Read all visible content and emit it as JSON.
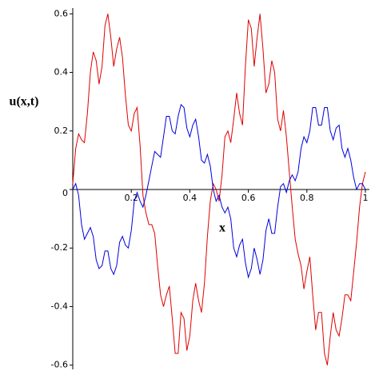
{
  "chart_data": {
    "type": "line",
    "xlabel": "x",
    "ylabel": "u(x,t)",
    "x": [
      0,
      0.01,
      0.02,
      0.03,
      0.04,
      0.05,
      0.06,
      0.07,
      0.08,
      0.09,
      0.1,
      0.11,
      0.12,
      0.13,
      0.14,
      0.15,
      0.16,
      0.17,
      0.18,
      0.19,
      0.2,
      0.21,
      0.22,
      0.23,
      0.24,
      0.25,
      0.26,
      0.27,
      0.28,
      0.29,
      0.3,
      0.31,
      0.32,
      0.33,
      0.34,
      0.35,
      0.36,
      0.37,
      0.38,
      0.39,
      0.4,
      0.41,
      0.42,
      0.43,
      0.44,
      0.45,
      0.46,
      0.47,
      0.48,
      0.49,
      0.5,
      0.51,
      0.52,
      0.53,
      0.54,
      0.55,
      0.56,
      0.57,
      0.58,
      0.59,
      0.6,
      0.61,
      0.62,
      0.63,
      0.64,
      0.65,
      0.66,
      0.67,
      0.68,
      0.69,
      0.7,
      0.71,
      0.72,
      0.73,
      0.74,
      0.75,
      0.76,
      0.77,
      0.78,
      0.79,
      0.8,
      0.81,
      0.82,
      0.83,
      0.84,
      0.85,
      0.86,
      0.87,
      0.88,
      0.89,
      0.9,
      0.91,
      0.92,
      0.93,
      0.94,
      0.95,
      0.96,
      0.97,
      0.98,
      0.99,
      1
    ],
    "series": [
      {
        "color": "#e00000",
        "values": [
          0.02,
          0.14,
          0.19,
          0.17,
          0.16,
          0.26,
          0.4,
          0.47,
          0.44,
          0.36,
          0.42,
          0.56,
          0.6,
          0.52,
          0.42,
          0.48,
          0.52,
          0.45,
          0.32,
          0.22,
          0.2,
          0.26,
          0.28,
          0.15,
          -0.02,
          -0.08,
          -0.12,
          -0.12,
          -0.15,
          -0.26,
          -0.36,
          -0.4,
          -0.36,
          -0.33,
          -0.44,
          -0.56,
          -0.56,
          -0.42,
          -0.44,
          -0.55,
          -0.5,
          -0.38,
          -0.32,
          -0.38,
          -0.42,
          -0.32,
          -0.16,
          -0.04,
          0.02,
          0.0,
          -0.04,
          0.05,
          0.18,
          0.2,
          0.16,
          0.24,
          0.33,
          0.26,
          0.22,
          0.42,
          0.58,
          0.55,
          0.42,
          0.52,
          0.6,
          0.48,
          0.33,
          0.36,
          0.44,
          0.4,
          0.24,
          0.2,
          0.27,
          0.18,
          0.06,
          -0.06,
          -0.17,
          -0.22,
          -0.26,
          -0.34,
          -0.28,
          -0.23,
          -0.36,
          -0.48,
          -0.42,
          -0.42,
          -0.56,
          -0.6,
          -0.5,
          -0.42,
          -0.48,
          -0.5,
          -0.44,
          -0.36,
          -0.36,
          -0.38,
          -0.28,
          -0.18,
          -0.06,
          0.02,
          0.06
        ]
      },
      {
        "color": "#0000e0",
        "values": [
          0.0,
          0.02,
          -0.02,
          -0.12,
          -0.17,
          -0.15,
          -0.13,
          -0.16,
          -0.24,
          -0.27,
          -0.26,
          -0.21,
          -0.21,
          -0.27,
          -0.29,
          -0.26,
          -0.18,
          -0.16,
          -0.19,
          -0.2,
          -0.14,
          -0.04,
          -0.01,
          -0.04,
          -0.06,
          -0.02,
          0.03,
          0.08,
          0.13,
          0.12,
          0.11,
          0.18,
          0.25,
          0.25,
          0.2,
          0.19,
          0.25,
          0.29,
          0.28,
          0.21,
          0.18,
          0.22,
          0.24,
          0.18,
          0.1,
          0.09,
          0.12,
          0.08,
          0.0,
          -0.04,
          -0.02,
          -0.06,
          -0.08,
          -0.06,
          -0.1,
          -0.2,
          -0.23,
          -0.19,
          -0.17,
          -0.25,
          -0.3,
          -0.27,
          -0.2,
          -0.24,
          -0.29,
          -0.24,
          -0.14,
          -0.1,
          -0.15,
          -0.15,
          -0.06,
          0.01,
          0.02,
          -0.01,
          0.03,
          0.05,
          0.03,
          0.06,
          0.14,
          0.18,
          0.16,
          0.2,
          0.28,
          0.28,
          0.22,
          0.22,
          0.28,
          0.28,
          0.2,
          0.17,
          0.21,
          0.22,
          0.14,
          0.11,
          0.14,
          0.1,
          0.04,
          0.0,
          0.02,
          0.02,
          0.0
        ]
      }
    ],
    "xlim": [
      0,
      1
    ],
    "ylim": [
      -0.62,
      0.62
    ],
    "xticks": [
      0.2,
      0.4,
      0.6,
      0.8,
      1
    ],
    "yticks": [
      -0.6,
      -0.4,
      -0.2,
      0,
      0.2,
      0.4,
      0.6
    ]
  }
}
